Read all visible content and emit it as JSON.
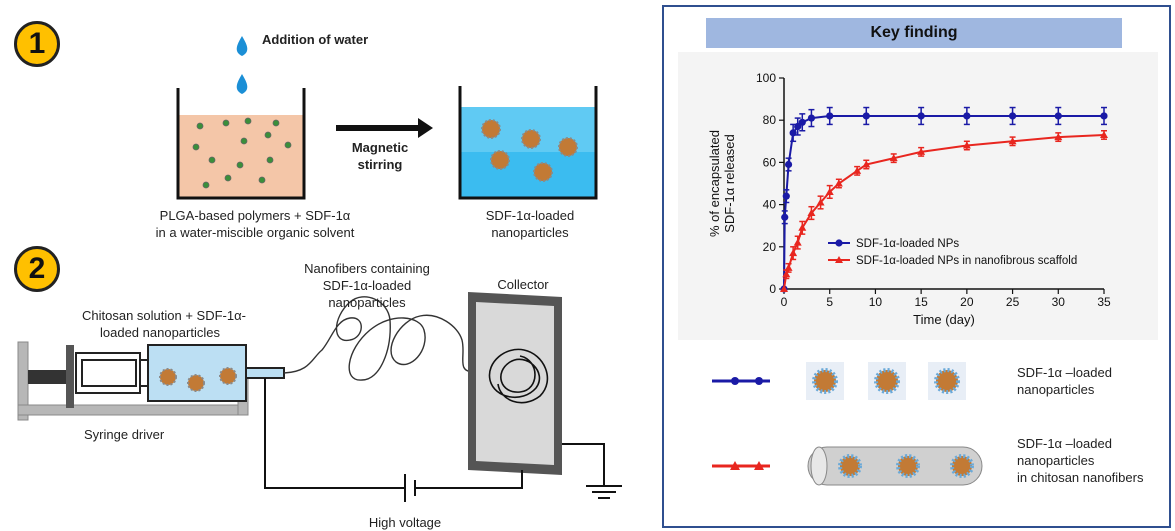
{
  "left": {
    "step1_badge": "1",
    "step2_badge": "2",
    "addition_of_water": "Addition of water",
    "magnetic_stirring": "Magnetic stirring",
    "polymers_caption_line1": "PLGA-based polymers + SDF-1α",
    "polymers_caption_line2": "in a water-miscible organic solvent",
    "np_caption_line1": "SDF-1α-loaded",
    "np_caption_line2": "nanoparticles",
    "nanofibers_label_line1": "Nanofibers containing",
    "nanofibers_label_line2": "SDF-1α-loaded",
    "nanofibers_label_line3": "nanoparticles",
    "collector_label": "Collector",
    "chitosan_label_line1": "Chitosan solution + SDF-1α-",
    "chitosan_label_line2": "loaded nanoparticles",
    "syringe_driver_label": "Syringe driver",
    "high_voltage_label": "High voltage"
  },
  "right": {
    "key_finding_title": "Key finding",
    "legend_np_line1": "SDF-1α –loaded",
    "legend_np_line2": "nanoparticles",
    "legend_fiber_line1": "SDF-1α –loaded",
    "legend_fiber_line2": "nanoparticles",
    "legend_fiber_line3": "in chitosan nanofibers"
  },
  "colors": {
    "blue_series": "#1a1aa6",
    "red_series": "#e8261f",
    "badge": "#ffc000",
    "header_bar": "#9fb7e0",
    "panel_border": "#2f4f8f"
  },
  "chart_data": {
    "type": "line",
    "xlabel": "Time (day)",
    "ylabel_line1": "% of encapsulated",
    "ylabel_line2": "SDF-1α released",
    "xlim": [
      0,
      35
    ],
    "ylim": [
      0,
      100
    ],
    "x_ticks": [
      0,
      5,
      10,
      15,
      20,
      25,
      30,
      35
    ],
    "y_ticks": [
      0,
      20,
      40,
      60,
      80,
      100
    ],
    "legend_position": "center",
    "series": [
      {
        "name": "SDF-1α-loaded NPs",
        "color": "#1a1aa6",
        "marker": "circle",
        "x": [
          0,
          0.08,
          0.25,
          0.5,
          1,
          1.5,
          2,
          3,
          5,
          9,
          15,
          20,
          25,
          30,
          35
        ],
        "y": [
          0,
          34,
          44,
          59,
          74,
          77,
          79,
          81,
          82,
          82,
          82,
          82,
          82,
          82,
          82
        ],
        "err": [
          0,
          3,
          3,
          3,
          4,
          4,
          4,
          4,
          4,
          4,
          4,
          4,
          4,
          4,
          4
        ]
      },
      {
        "name": "SDF-1α-loaded NPs in nanofibrous scaffold",
        "color": "#e8261f",
        "marker": "triangle",
        "x": [
          0,
          0.25,
          0.5,
          1,
          1.5,
          2,
          3,
          4,
          5,
          6,
          8,
          9,
          12,
          15,
          20,
          25,
          30,
          35
        ],
        "y": [
          0,
          7,
          10,
          17,
          22,
          29,
          36,
          41,
          46,
          50,
          56,
          59,
          62,
          65,
          68,
          70,
          72,
          73
        ],
        "err": [
          0,
          2,
          2,
          3,
          3,
          3,
          3,
          3,
          3,
          2,
          2,
          2,
          2,
          2,
          2,
          2,
          2,
          2
        ]
      }
    ]
  }
}
